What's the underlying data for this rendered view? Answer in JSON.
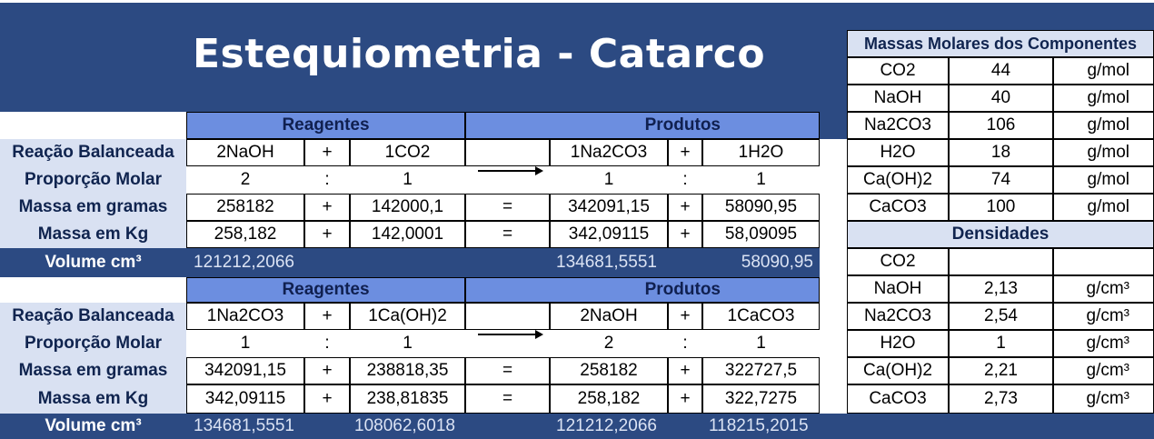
{
  "title": "Estequiometria - Catarco",
  "table1": {
    "reagentes": "Reagentes",
    "produtos": "Produtos",
    "rows": [
      {
        "label": "Reação Balanceada",
        "c": [
          "2NaOH",
          "+",
          "1CO2",
          "",
          "1Na2CO3",
          "+",
          "1H2O"
        ]
      },
      {
        "label": "Proporção Molar",
        "c": [
          "2",
          ":",
          "1",
          "",
          "1",
          ":",
          "1"
        ]
      },
      {
        "label": "Massa em gramas",
        "c": [
          "258182",
          "+",
          "142000,1",
          "=",
          "342091,15",
          "+",
          "58090,95"
        ]
      },
      {
        "label": "Massa em Kg",
        "c": [
          "258,182",
          "+",
          "142,0001",
          "=",
          "342,09115",
          "+",
          "58,09095"
        ]
      }
    ],
    "volume": {
      "label": "Volume cm³",
      "v1": "121212,2066",
      "v2": "",
      "v3": "134681,5551",
      "v4": "58090,95"
    }
  },
  "table2": {
    "reagentes": "Reagentes",
    "produtos": "Produtos",
    "rows": [
      {
        "label": "Reação Balanceada",
        "c": [
          "1Na2CO3",
          "+",
          "1Ca(OH)2",
          "",
          "2NaOH",
          "+",
          "1CaCO3"
        ]
      },
      {
        "label": "Proporção Molar",
        "c": [
          "1",
          ":",
          "1",
          "",
          "2",
          ":",
          "1"
        ]
      },
      {
        "label": "Massa em gramas",
        "c": [
          "342091,15",
          "+",
          "238818,35",
          "=",
          "258182",
          "+",
          "322727,5"
        ]
      },
      {
        "label": "Massa em Kg",
        "c": [
          "342,09115",
          "+",
          "238,81835",
          "=",
          "258,182",
          "+",
          "322,7275"
        ]
      }
    ],
    "volume": {
      "label": "Volume cm³",
      "v1": "134681,5551",
      "v2": "108062,6018",
      "v3": "121212,2066",
      "v4": "118215,2015"
    }
  },
  "molar": {
    "title": "Massas Molares dos Componentes",
    "rows": [
      {
        "name": "CO2",
        "value": "44",
        "unit": "g/mol"
      },
      {
        "name": "NaOH",
        "value": "40",
        "unit": "g/mol"
      },
      {
        "name": "Na2CO3",
        "value": "106",
        "unit": "g/mol"
      },
      {
        "name": "H2O",
        "value": "18",
        "unit": "g/mol"
      },
      {
        "name": "Ca(OH)2",
        "value": "74",
        "unit": "g/mol"
      },
      {
        "name": "CaCO3",
        "value": "100",
        "unit": "g/mol"
      }
    ]
  },
  "densities": {
    "title": "Densidades",
    "rows": [
      {
        "name": "CO2",
        "value": "",
        "unit": ""
      },
      {
        "name": "NaOH",
        "value": "2,13",
        "unit": "g/cm³"
      },
      {
        "name": "Na2CO3",
        "value": "2,54",
        "unit": "g/cm³"
      },
      {
        "name": "H2O",
        "value": "1",
        "unit": "g/cm³"
      },
      {
        "name": "Ca(OH)2",
        "value": "2,21",
        "unit": "g/cm³"
      },
      {
        "name": "CaCO3",
        "value": "2,73",
        "unit": "g/cm³"
      }
    ]
  }
}
